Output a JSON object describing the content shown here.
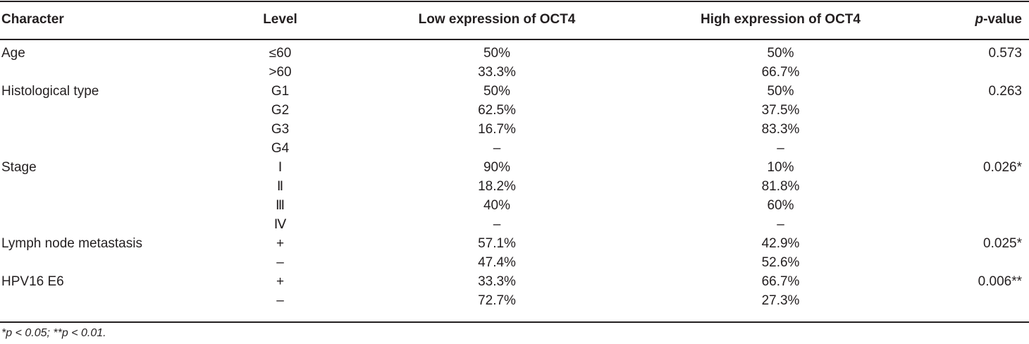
{
  "header": {
    "character": "Character",
    "level": "Level",
    "low": "Low expression of OCT4",
    "high": "High expression of OCT4",
    "p_italic": "p",
    "p_rest": "-value"
  },
  "rows": [
    {
      "character": "Age",
      "level": "≤60",
      "low": "50%",
      "high": "50%",
      "p": "0.573"
    },
    {
      "character": "",
      "level": ">60",
      "low": "33.3%",
      "high": "66.7%",
      "p": ""
    },
    {
      "character": "Histological type",
      "level": "G1",
      "low": "50%",
      "high": "50%",
      "p": "0.263"
    },
    {
      "character": "",
      "level": "G2",
      "low": "62.5%",
      "high": "37.5%",
      "p": ""
    },
    {
      "character": "",
      "level": "G3",
      "low": "16.7%",
      "high": "83.3%",
      "p": ""
    },
    {
      "character": "",
      "level": "G4",
      "low": "–",
      "high": "–",
      "p": ""
    },
    {
      "character": "Stage",
      "level": "Ⅰ",
      "low": "90%",
      "high": "10%",
      "p": "0.026*"
    },
    {
      "character": "",
      "level": "Ⅱ",
      "low": "18.2%",
      "high": "81.8%",
      "p": ""
    },
    {
      "character": "",
      "level": "Ⅲ",
      "low": "40%",
      "high": "60%",
      "p": ""
    },
    {
      "character": "",
      "level": "Ⅳ",
      "low": "–",
      "high": "–",
      "p": ""
    },
    {
      "character": "Lymph node metastasis",
      "level": "+",
      "low": "57.1%",
      "high": "42.9%",
      "p": "0.025*"
    },
    {
      "character": "",
      "level": "–",
      "low": "47.4%",
      "high": "52.6%",
      "p": ""
    },
    {
      "character": "HPV16 E6",
      "level": "+",
      "low": "33.3%",
      "high": "66.7%",
      "p": "0.006**"
    },
    {
      "character": "",
      "level": "–",
      "low": "72.7%",
      "high": "27.3%",
      "p": ""
    }
  ],
  "footnote": "*p < 0.05; **p < 0.01."
}
